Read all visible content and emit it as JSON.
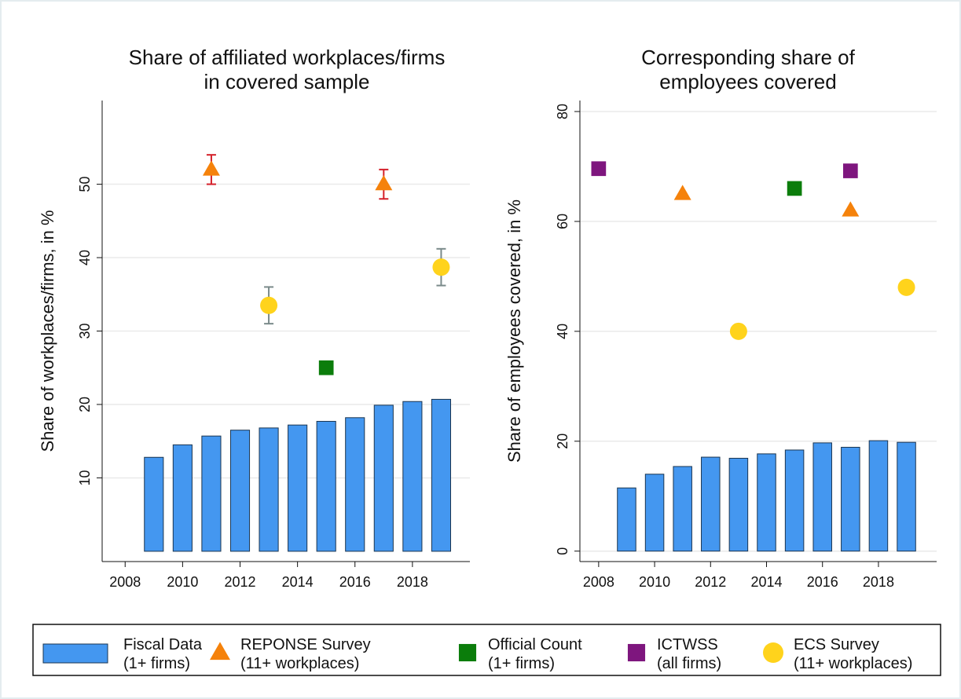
{
  "chart_data": [
    {
      "type": "combo",
      "title": "Share of affiliated workplaces/firms\nin covered sample",
      "y_label": "Share of workplaces/firms, in %",
      "xlim": [
        2007.2,
        2020
      ],
      "xticks": [
        2008,
        2010,
        2012,
        2014,
        2016,
        2018
      ],
      "ylim": [
        -1.4,
        61.4
      ],
      "yticks": [
        10,
        20,
        30,
        40,
        50
      ],
      "grid": true,
      "series": [
        {
          "type": "bar",
          "color": "#4497f0",
          "x": [
            2009,
            2010,
            2011,
            2012,
            2013,
            2014,
            2015,
            2016,
            2017,
            2018,
            2019
          ],
          "values": [
            12.8,
            14.5,
            15.7,
            16.5,
            16.8,
            17.2,
            17.7,
            18.2,
            19.9,
            20.4,
            20.7
          ]
        },
        {
          "type": "scatter",
          "marker": "triangle",
          "color": "#f5820b",
          "error_color": "#d4202a",
          "x": [
            2011,
            2017
          ],
          "values": [
            52,
            50
          ],
          "errors": [
            2,
            2
          ]
        },
        {
          "type": "scatter",
          "marker": "square",
          "color": "#0b7d0b",
          "x": [
            2015
          ],
          "values": [
            25
          ]
        },
        {
          "type": "scatter",
          "marker": "circle",
          "color": "#ffd31c",
          "error_color": "#7a8a8a",
          "x": [
            2013,
            2019
          ],
          "values": [
            33.5,
            38.7
          ],
          "errors": [
            2.5,
            2.5
          ]
        }
      ]
    },
    {
      "type": "combo",
      "title": "Corresponding share of\nemployees covered",
      "y_label": "Share of employees covered, in %",
      "xlim": [
        2007.33,
        2020.08
      ],
      "xticks": [
        2008,
        2010,
        2012,
        2014,
        2016,
        2018
      ],
      "ylim": [
        -1.9,
        82
      ],
      "yticks": [
        0,
        20,
        40,
        60,
        80
      ],
      "grid": true,
      "series": [
        {
          "type": "bar",
          "color": "#4497f0",
          "x": [
            2009,
            2010,
            2011,
            2012,
            2013,
            2014,
            2015,
            2016,
            2017,
            2018,
            2019
          ],
          "values": [
            11.5,
            14,
            15.4,
            17.1,
            16.9,
            17.7,
            18.4,
            19.7,
            18.9,
            20.1,
            19.8
          ]
        },
        {
          "type": "scatter",
          "marker": "triangle",
          "color": "#f5820b",
          "x": [
            2011,
            2017
          ],
          "values": [
            65,
            62
          ]
        },
        {
          "type": "scatter",
          "marker": "square",
          "color": "#0b7d0b",
          "x": [
            2015
          ],
          "values": [
            66
          ]
        },
        {
          "type": "scatter",
          "marker": "square",
          "color": "#7e167e",
          "x": [
            2008,
            2017
          ],
          "values": [
            69.6,
            69.2
          ]
        },
        {
          "type": "scatter",
          "marker": "circle",
          "color": "#ffd31c",
          "x": [
            2013,
            2019
          ],
          "values": [
            40,
            48
          ]
        }
      ]
    }
  ],
  "legend": [
    {
      "label": "Fiscal Data\n(1+ firms)",
      "marker": "bar",
      "color": "#4497f0"
    },
    {
      "label": "REPONSE Survey\n(11+ workplaces)",
      "marker": "triangle",
      "color": "#f5820b"
    },
    {
      "label": "Official Count\n(1+ firms)",
      "marker": "square",
      "color": "#0b7d0b"
    },
    {
      "label": "ICTWSS\n(all firms)",
      "marker": "square",
      "color": "#7e167e"
    },
    {
      "label": "ECS Survey\n(11+ workplaces)",
      "marker": "circle",
      "color": "#ffd31c"
    }
  ]
}
